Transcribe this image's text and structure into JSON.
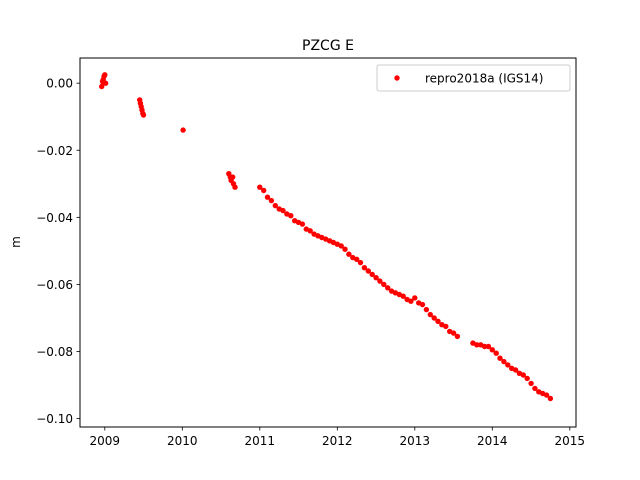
{
  "chart_data": {
    "type": "scatter",
    "title": "PZCG E",
    "xlabel": "",
    "ylabel": "m",
    "xlim": [
      2008.68,
      2015.08
    ],
    "ylim": [
      -0.1025,
      0.0075
    ],
    "xticks": [
      2009,
      2010,
      2011,
      2012,
      2013,
      2014,
      2015
    ],
    "xtick_labels": [
      "2009",
      "2010",
      "2011",
      "2012",
      "2013",
      "2014",
      "2015"
    ],
    "yticks": [
      0.0,
      -0.02,
      -0.04,
      -0.06,
      -0.08,
      -0.1
    ],
    "ytick_labels": [
      "0.00",
      "−0.02",
      "−0.04",
      "−0.06",
      "−0.08",
      "−0.10"
    ],
    "grid": false,
    "legend": {
      "position": "upper right",
      "entries": [
        "repro2018a (IGS14)"
      ]
    },
    "series": [
      {
        "name": "repro2018a (IGS14)",
        "color": "#ff0000",
        "marker": "circle",
        "x": [
          2008.96,
          2008.97,
          2008.98,
          2008.99,
          2009.0,
          2009.01,
          2009.45,
          2009.46,
          2009.47,
          2009.48,
          2009.49,
          2009.5,
          2010.01,
          2010.6,
          2010.62,
          2010.63,
          2010.65,
          2010.66,
          2010.68,
          2011.0,
          2011.05,
          2011.1,
          2011.15,
          2011.2,
          2011.25,
          2011.3,
          2011.35,
          2011.4,
          2011.45,
          2011.5,
          2011.55,
          2011.6,
          2011.65,
          2011.7,
          2011.75,
          2011.8,
          2011.85,
          2011.9,
          2011.95,
          2012.0,
          2012.05,
          2012.1,
          2012.15,
          2012.2,
          2012.25,
          2012.3,
          2012.35,
          2012.4,
          2012.45,
          2012.5,
          2012.55,
          2012.6,
          2012.65,
          2012.7,
          2012.75,
          2012.8,
          2012.85,
          2012.9,
          2012.95,
          2013.0,
          2013.05,
          2013.1,
          2013.15,
          2013.2,
          2013.25,
          2013.3,
          2013.35,
          2013.4,
          2013.45,
          2013.5,
          2013.55,
          2013.75,
          2013.8,
          2013.85,
          2013.9,
          2013.95,
          2014.0,
          2014.05,
          2014.1,
          2014.15,
          2014.2,
          2014.25,
          2014.3,
          2014.35,
          2014.4,
          2014.45,
          2014.5,
          2014.55,
          2014.6,
          2014.65,
          2014.7,
          2014.75
        ],
        "y": [
          -0.001,
          0.0005,
          0.001,
          0.002,
          0.0025,
          0.0,
          -0.005,
          -0.006,
          -0.007,
          -0.008,
          -0.009,
          -0.0095,
          -0.014,
          -0.027,
          -0.028,
          -0.029,
          -0.028,
          -0.03,
          -0.031,
          -0.031,
          -0.032,
          -0.034,
          -0.035,
          -0.0365,
          -0.0375,
          -0.038,
          -0.039,
          -0.0395,
          -0.041,
          -0.0415,
          -0.042,
          -0.0435,
          -0.044,
          -0.045,
          -0.0455,
          -0.046,
          -0.0465,
          -0.047,
          -0.0475,
          -0.048,
          -0.0485,
          -0.0495,
          -0.051,
          -0.052,
          -0.0525,
          -0.0535,
          -0.055,
          -0.056,
          -0.057,
          -0.058,
          -0.059,
          -0.06,
          -0.061,
          -0.062,
          -0.0625,
          -0.063,
          -0.0635,
          -0.0645,
          -0.065,
          -0.064,
          -0.0655,
          -0.066,
          -0.0675,
          -0.069,
          -0.07,
          -0.071,
          -0.072,
          -0.0725,
          -0.074,
          -0.0745,
          -0.0755,
          -0.0775,
          -0.078,
          -0.078,
          -0.0785,
          -0.0785,
          -0.0795,
          -0.0805,
          -0.082,
          -0.083,
          -0.084,
          -0.085,
          -0.0855,
          -0.0865,
          -0.087,
          -0.088,
          -0.0895,
          -0.091,
          -0.092,
          -0.0925,
          -0.093,
          -0.094
        ]
      }
    ]
  }
}
